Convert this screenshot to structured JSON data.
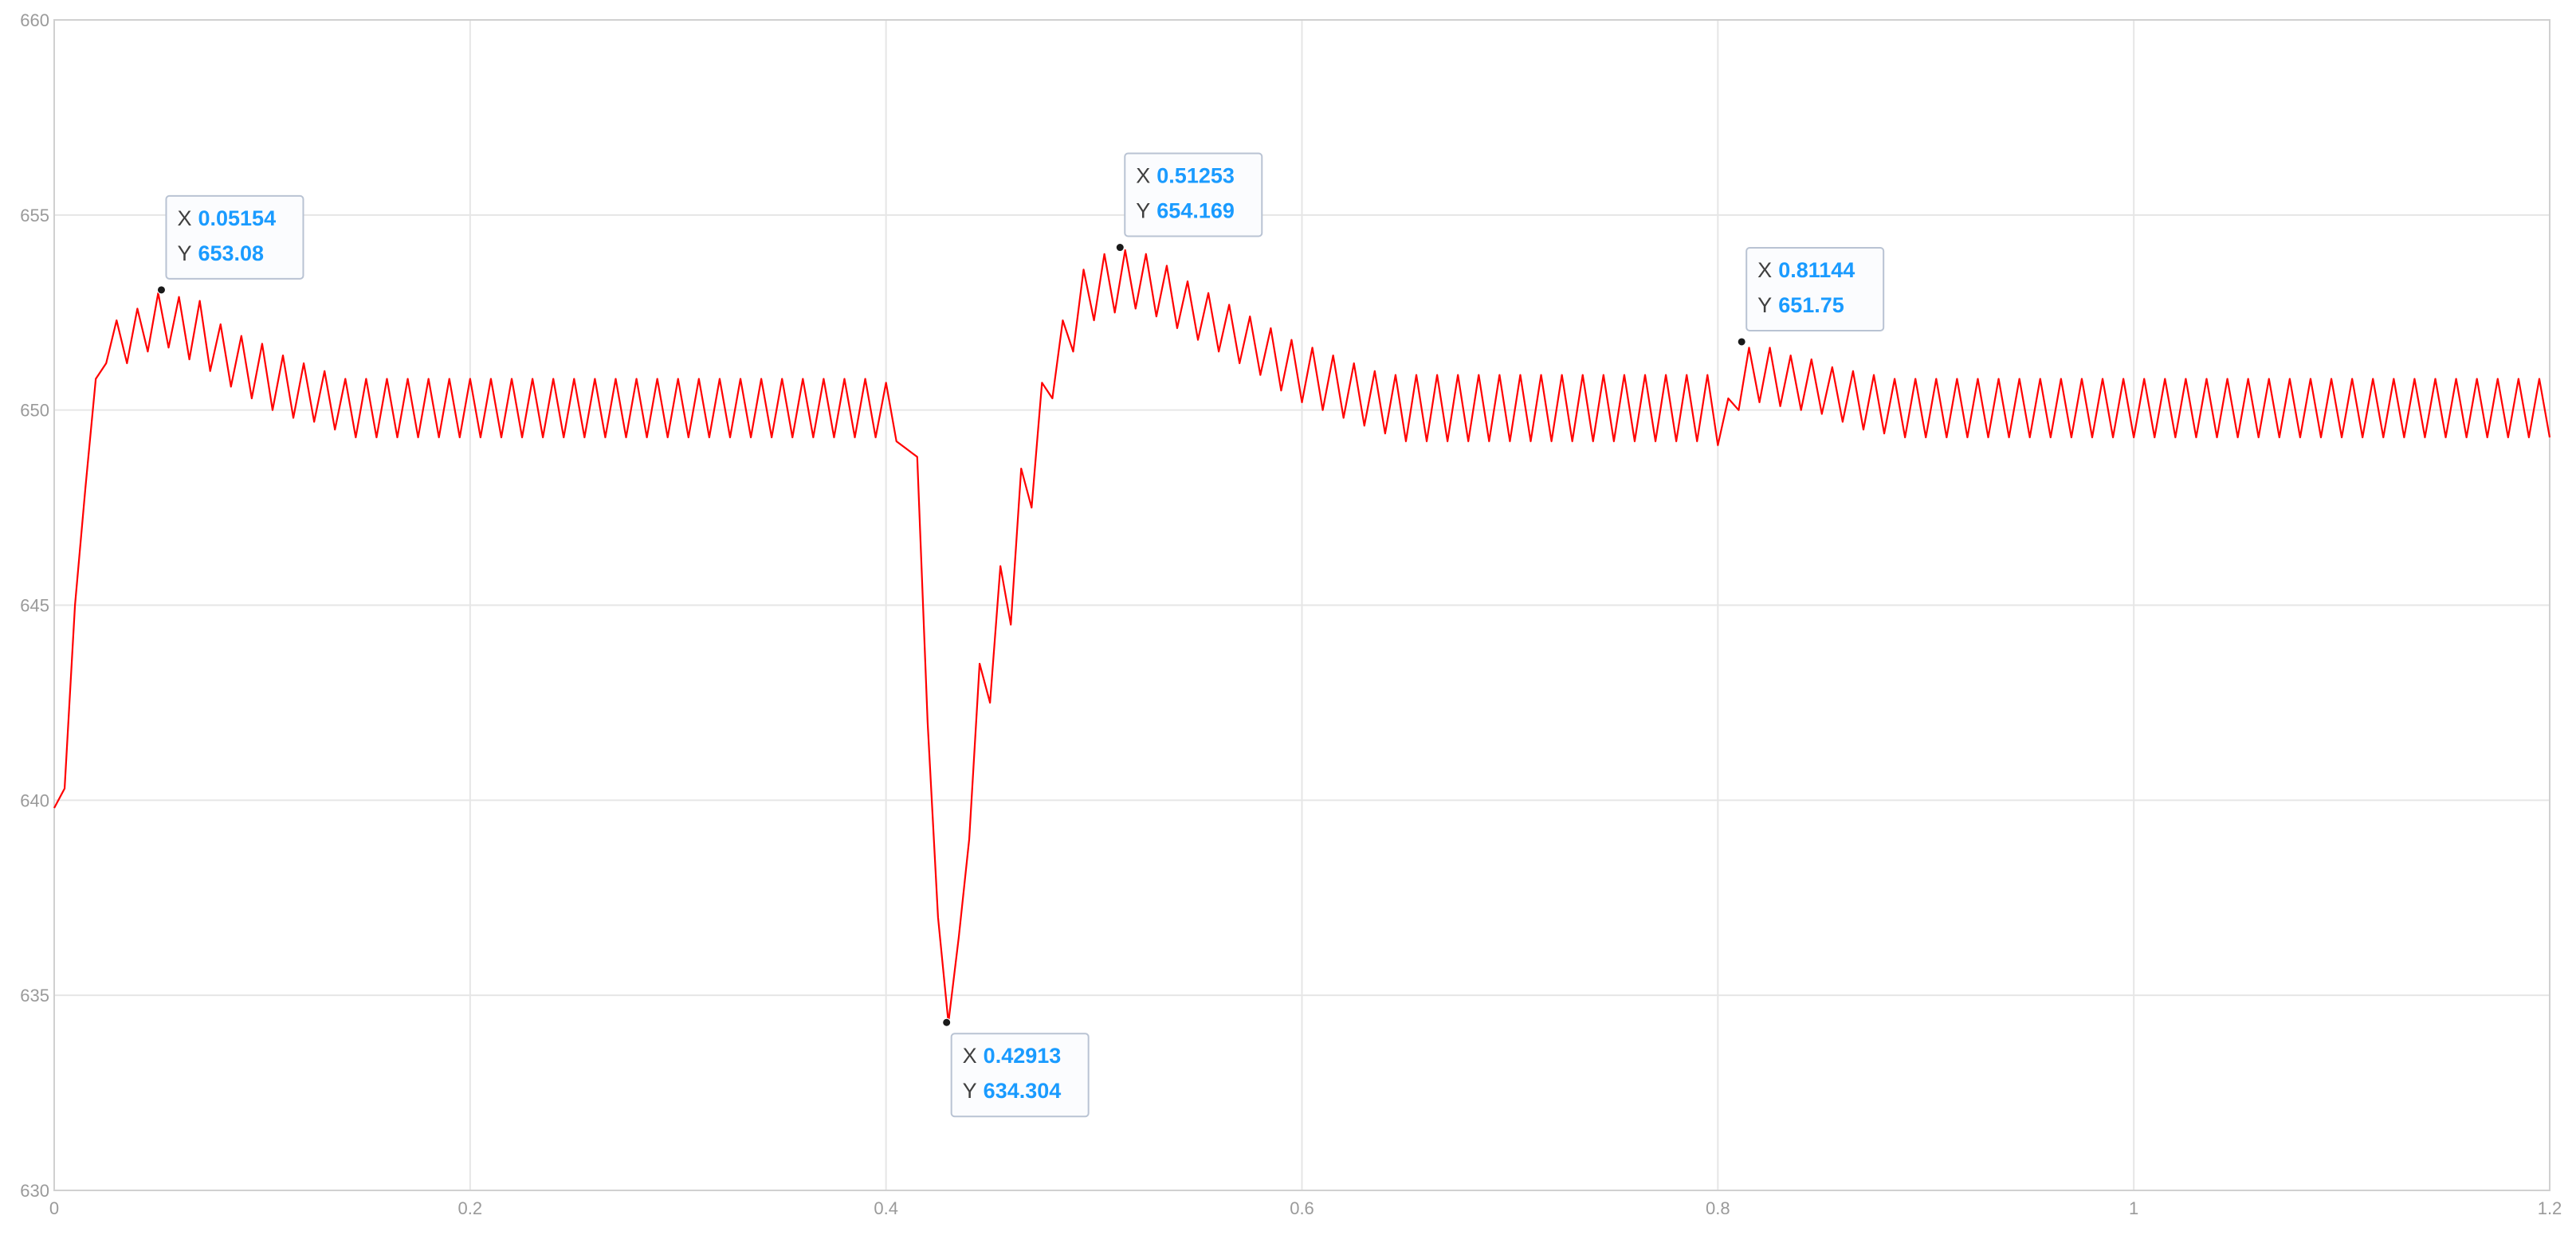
{
  "chart_data": {
    "type": "line",
    "xlim": [
      0,
      1.2
    ],
    "xticks": [
      0,
      0.2,
      0.4,
      0.6,
      0.8,
      1,
      1.2
    ],
    "ylim": [
      630,
      660
    ],
    "yticks": [
      630,
      635,
      640,
      645,
      650,
      655,
      660
    ],
    "grid": true,
    "x": [
      0,
      0.005,
      0.01,
      0.015,
      0.02,
      0.025,
      0.03,
      0.035,
      0.04,
      0.045,
      0.05,
      0.055,
      0.06,
      0.065,
      0.07,
      0.075,
      0.08,
      0.085,
      0.09,
      0.095,
      0.1,
      0.105,
      0.11,
      0.115,
      0.12,
      0.125,
      0.13,
      0.135,
      0.14,
      0.145,
      0.15,
      0.155,
      0.16,
      0.165,
      0.17,
      0.175,
      0.18,
      0.185,
      0.19,
      0.195,
      0.2,
      0.205,
      0.21,
      0.215,
      0.22,
      0.225,
      0.23,
      0.235,
      0.24,
      0.245,
      0.25,
      0.255,
      0.26,
      0.265,
      0.27,
      0.275,
      0.28,
      0.285,
      0.29,
      0.295,
      0.3,
      0.305,
      0.31,
      0.315,
      0.32,
      0.325,
      0.33,
      0.335,
      0.34,
      0.345,
      0.35,
      0.355,
      0.36,
      0.365,
      0.37,
      0.375,
      0.38,
      0.385,
      0.39,
      0.395,
      0.4,
      0.405,
      0.41,
      0.415,
      0.42,
      0.425,
      0.43,
      0.435,
      0.44,
      0.445,
      0.45,
      0.455,
      0.46,
      0.465,
      0.47,
      0.475,
      0.48,
      0.485,
      0.49,
      0.495,
      0.5,
      0.505,
      0.51,
      0.515,
      0.52,
      0.525,
      0.53,
      0.535,
      0.54,
      0.545,
      0.55,
      0.555,
      0.56,
      0.565,
      0.57,
      0.575,
      0.58,
      0.585,
      0.59,
      0.595,
      0.6,
      0.605,
      0.61,
      0.615,
      0.62,
      0.625,
      0.63,
      0.635,
      0.64,
      0.645,
      0.65,
      0.655,
      0.66,
      0.665,
      0.67,
      0.675,
      0.68,
      0.685,
      0.69,
      0.695,
      0.7,
      0.705,
      0.71,
      0.715,
      0.72,
      0.725,
      0.73,
      0.735,
      0.74,
      0.745,
      0.75,
      0.755,
      0.76,
      0.765,
      0.77,
      0.775,
      0.78,
      0.785,
      0.79,
      0.795,
      0.8,
      0.805,
      0.81,
      0.815,
      0.82,
      0.825,
      0.83,
      0.835,
      0.84,
      0.845,
      0.85,
      0.855,
      0.86,
      0.865,
      0.87,
      0.875,
      0.88,
      0.885,
      0.89,
      0.895,
      0.9,
      0.905,
      0.91,
      0.915,
      0.92,
      0.925,
      0.93,
      0.935,
      0.94,
      0.945,
      0.95,
      0.955,
      0.96,
      0.965,
      0.97,
      0.975,
      0.98,
      0.985,
      0.99,
      0.995,
      1,
      1.005,
      1.01,
      1.015,
      1.02,
      1.025,
      1.03,
      1.035,
      1.04,
      1.045,
      1.05,
      1.055,
      1.06,
      1.065,
      1.07,
      1.075,
      1.08,
      1.085,
      1.09,
      1.095,
      1.1,
      1.105,
      1.11,
      1.115,
      1.12,
      1.125,
      1.13,
      1.135,
      1.14,
      1.145,
      1.15,
      1.155,
      1.16,
      1.165,
      1.17,
      1.175,
      1.18,
      1.185,
      1.19,
      1.195,
      1.2
    ],
    "series": [
      {
        "color": "#ff0000",
        "values": [
          639.8,
          640.3,
          645.0,
          648.0,
          650.8,
          651.2,
          652.3,
          651.2,
          652.6,
          651.5,
          653.0,
          651.6,
          652.9,
          651.3,
          652.8,
          651.0,
          652.2,
          650.6,
          651.9,
          650.3,
          651.7,
          650.0,
          651.4,
          649.8,
          651.2,
          649.7,
          651.0,
          649.5,
          650.8,
          649.3,
          650.8,
          649.3,
          650.8,
          649.3,
          650.8,
          649.3,
          650.8,
          649.3,
          650.8,
          649.3,
          650.8,
          649.3,
          650.8,
          649.3,
          650.8,
          649.3,
          650.8,
          649.3,
          650.8,
          649.3,
          650.8,
          649.3,
          650.8,
          649.3,
          650.8,
          649.3,
          650.8,
          649.3,
          650.8,
          649.3,
          650.8,
          649.3,
          650.8,
          649.3,
          650.8,
          649.3,
          650.8,
          649.3,
          650.8,
          649.3,
          650.8,
          649.3,
          650.8,
          649.3,
          650.8,
          649.3,
          650.8,
          649.3,
          650.8,
          649.3,
          650.7,
          649.2,
          649.0,
          648.8,
          642.0,
          637.0,
          634.3,
          636.5,
          639.0,
          643.5,
          642.5,
          646.0,
          644.5,
          648.5,
          647.5,
          650.7,
          650.3,
          652.3,
          651.5,
          653.6,
          652.3,
          654.0,
          652.5,
          654.1,
          652.6,
          654.0,
          652.4,
          653.7,
          652.1,
          653.3,
          651.8,
          653.0,
          651.5,
          652.7,
          651.2,
          652.4,
          650.9,
          652.1,
          650.5,
          651.8,
          650.2,
          651.6,
          650.0,
          651.4,
          649.8,
          651.2,
          649.6,
          651.0,
          649.4,
          650.9,
          649.2,
          650.9,
          649.2,
          650.9,
          649.2,
          650.9,
          649.2,
          650.9,
          649.2,
          650.9,
          649.2,
          650.9,
          649.2,
          650.9,
          649.2,
          650.9,
          649.2,
          650.9,
          649.2,
          650.9,
          649.2,
          650.9,
          649.2,
          650.9,
          649.2,
          650.9,
          649.2,
          650.9,
          649.2,
          650.9,
          649.1,
          650.3,
          650.0,
          651.6,
          650.2,
          651.6,
          650.1,
          651.4,
          650.0,
          651.3,
          649.9,
          651.1,
          649.7,
          651.0,
          649.5,
          650.9,
          649.4,
          650.8,
          649.3,
          650.8,
          649.3,
          650.8,
          649.3,
          650.8,
          649.3,
          650.8,
          649.3,
          650.8,
          649.3,
          650.8,
          649.3,
          650.8,
          649.3,
          650.8,
          649.3,
          650.8,
          649.3,
          650.8,
          649.3,
          650.8,
          649.3,
          650.8,
          649.3,
          650.8,
          649.3,
          650.8,
          649.3,
          650.8,
          649.3,
          650.8,
          649.3,
          650.8,
          649.3,
          650.8,
          649.3,
          650.8,
          649.3,
          650.8,
          649.3,
          650.8,
          649.3,
          650.8,
          649.3,
          650.8,
          649.3,
          650.8,
          649.3,
          650.8,
          649.3,
          650.8,
          649.3,
          650.8,
          649.3,
          650.8,
          649.3,
          650.8,
          649.3,
          650.8,
          649.3,
          650.8,
          649.3
        ]
      }
    ],
    "datatip_labels": [
      "X",
      "Y"
    ],
    "datatips": [
      {
        "x": 0.05154,
        "y": 653.08
      },
      {
        "x": 0.42913,
        "y": 634.304
      },
      {
        "x": 0.51253,
        "y": 654.169
      },
      {
        "x": 0.81144,
        "y": 651.75
      }
    ]
  }
}
